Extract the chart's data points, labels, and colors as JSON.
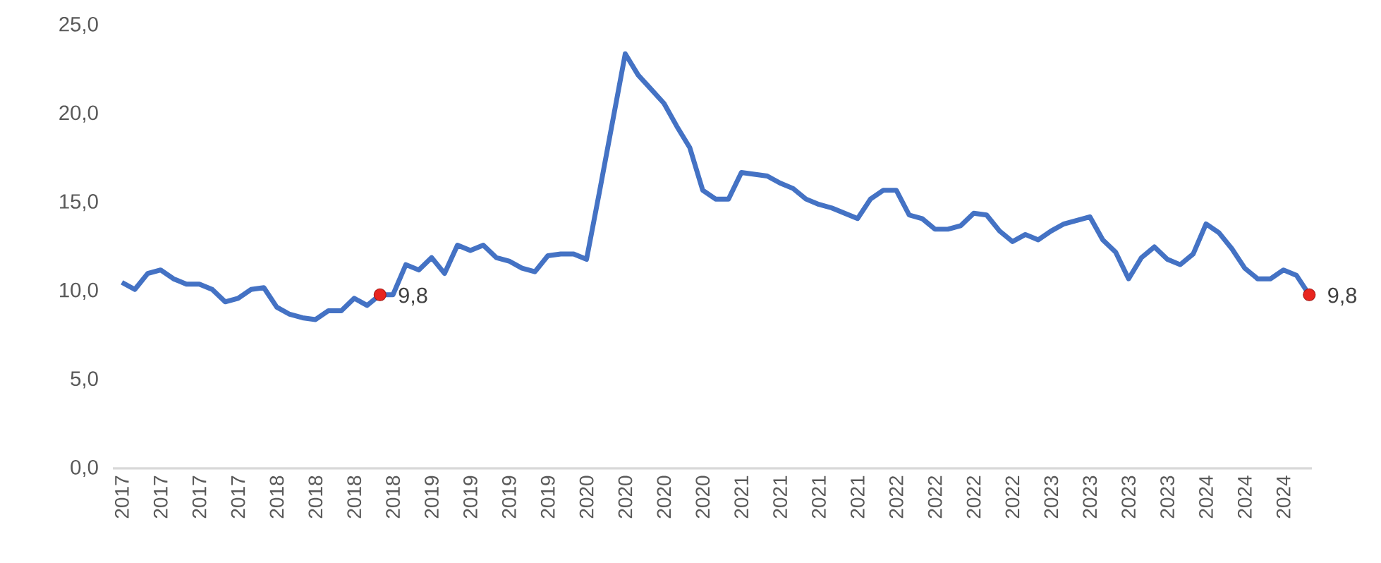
{
  "chart_data": {
    "type": "line",
    "categories": [
      "2017",
      null,
      null,
      "2017",
      null,
      null,
      "2017",
      null,
      null,
      "2017",
      null,
      null,
      "2018",
      null,
      null,
      "2018",
      null,
      null,
      "2018",
      null,
      null,
      "2018",
      null,
      null,
      "2019",
      null,
      null,
      "2019",
      null,
      null,
      "2019",
      null,
      null,
      "2019",
      null,
      null,
      "2020",
      null,
      null,
      "2020",
      null,
      null,
      "2020",
      null,
      null,
      "2020",
      null,
      null,
      "2021",
      null,
      null,
      "2021",
      null,
      null,
      "2021",
      null,
      null,
      "2021",
      null,
      null,
      "2022",
      null,
      null,
      "2022",
      null,
      null,
      "2022",
      null,
      null,
      "2022",
      null,
      null,
      "2023",
      null,
      null,
      "2023",
      null,
      null,
      "2023",
      null,
      null,
      "2023",
      null,
      null,
      "2024",
      null,
      null,
      "2024",
      null,
      null,
      "2024",
      null,
      null
    ],
    "series": [
      {
        "color": "#4472c4",
        "values": [
          10.5,
          10.1,
          11.0,
          11.2,
          10.7,
          10.4,
          10.4,
          10.1,
          9.4,
          9.6,
          10.1,
          10.2,
          9.1,
          8.7,
          8.5,
          8.4,
          8.9,
          8.9,
          9.6,
          9.2,
          9.8,
          9.8,
          11.5,
          11.2,
          11.9,
          11.0,
          12.6,
          12.3,
          12.6,
          11.9,
          11.7,
          11.3,
          11.1,
          12.0,
          12.1,
          12.1,
          11.8,
          15.6,
          19.5,
          23.4,
          22.2,
          21.4,
          20.6,
          19.3,
          18.1,
          15.7,
          15.2,
          15.2,
          16.7,
          16.6,
          16.5,
          16.1,
          15.8,
          15.2,
          14.9,
          14.7,
          14.4,
          14.1,
          15.2,
          15.7,
          15.7,
          14.3,
          14.1,
          13.5,
          13.5,
          13.7,
          14.4,
          14.3,
          13.4,
          12.8,
          13.2,
          12.9,
          13.4,
          13.8,
          14.0,
          14.2,
          12.9,
          12.2,
          10.7,
          11.9,
          12.5,
          11.8,
          11.5,
          12.1,
          13.8,
          13.3,
          12.4,
          11.3,
          10.7,
          10.7,
          11.2,
          10.9,
          9.8
        ],
        "value_labels": [
          null,
          null,
          null,
          null,
          null,
          null,
          null,
          null,
          null,
          null,
          null,
          null,
          null,
          null,
          null,
          null,
          null,
          null,
          null,
          null,
          "9,8",
          null,
          null,
          null,
          null,
          null,
          null,
          null,
          null,
          null,
          null,
          null,
          null,
          null,
          null,
          null,
          null,
          null,
          null,
          null,
          null,
          null,
          null,
          null,
          null,
          null,
          null,
          null,
          null,
          null,
          null,
          null,
          null,
          null,
          null,
          null,
          null,
          null,
          null,
          null,
          null,
          null,
          null,
          null,
          null,
          null,
          null,
          null,
          null,
          null,
          null,
          null,
          null,
          null,
          null,
          null,
          null,
          null,
          null,
          null,
          null,
          null,
          null,
          null,
          null,
          null,
          null,
          null,
          null,
          null,
          null,
          null,
          "9,8"
        ],
        "colors": [
          null,
          null,
          null,
          null,
          null,
          null,
          null,
          null,
          null,
          null,
          null,
          null,
          null,
          null,
          null,
          null,
          null,
          null,
          null,
          null,
          "#e8251f",
          null,
          null,
          null,
          null,
          null,
          null,
          null,
          null,
          null,
          null,
          null,
          null,
          null,
          null,
          null,
          null,
          null,
          null,
          null,
          null,
          null,
          null,
          null,
          null,
          null,
          null,
          null,
          null,
          null,
          null,
          null,
          null,
          null,
          null,
          null,
          null,
          null,
          null,
          null,
          null,
          null,
          null,
          null,
          null,
          null,
          null,
          null,
          null,
          null,
          null,
          null,
          null,
          null,
          null,
          null,
          null,
          null,
          null,
          null,
          null,
          null,
          null,
          null,
          null,
          null,
          null,
          null,
          null,
          null,
          null,
          null,
          "#e8251f"
        ]
      }
    ],
    "ylim": [
      0,
      25
    ],
    "yticks": [
      {
        "value": 0,
        "label": "0,0"
      },
      {
        "value": 5,
        "label": "5,0"
      },
      {
        "value": 10,
        "label": "10,0"
      },
      {
        "value": 15,
        "label": "15,0"
      },
      {
        "value": 20,
        "label": "20,0"
      },
      {
        "value": 25,
        "label": "25,0"
      }
    ],
    "grid": false,
    "marker": "none",
    "line_style": "solid"
  }
}
